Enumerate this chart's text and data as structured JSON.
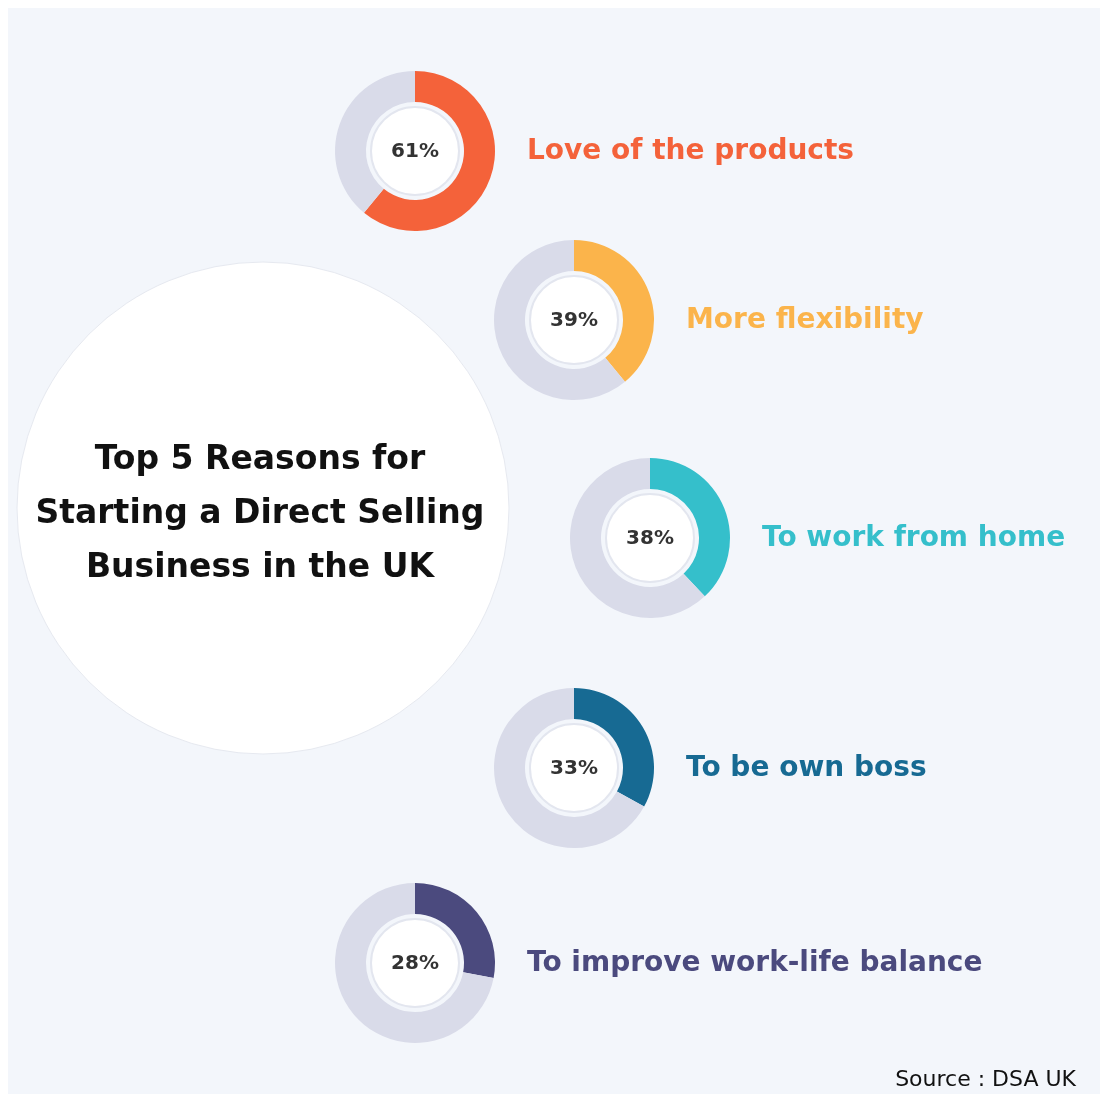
{
  "chart_data": [
    {
      "type": "other",
      "title": "Top 5 Reasons for Starting a Direct Selling Business in the UK",
      "annotations": [
        "Source : DSA UK"
      ]
    },
    {
      "type": "donut",
      "categories": [
        "Love of the products",
        null
      ],
      "values": [
        61,
        39
      ],
      "colors": [
        "#f4623a",
        "#d9dbe9"
      ],
      "value_labels": [
        "61%",
        null
      ]
    },
    {
      "type": "donut",
      "categories": [
        "More flexibility",
        null
      ],
      "values": [
        39,
        61
      ],
      "colors": [
        "#fbb44b",
        "#d9dbe9"
      ],
      "value_labels": [
        "39%",
        null
      ]
    },
    {
      "type": "donut",
      "categories": [
        "To work from home",
        null
      ],
      "values": [
        38,
        62
      ],
      "colors": [
        "#35bfcb",
        "#d9dbe9"
      ],
      "value_labels": [
        "38%",
        null
      ]
    },
    {
      "type": "donut",
      "categories": [
        "To be own boss",
        null
      ],
      "values": [
        33,
        67
      ],
      "colors": [
        "#176a93",
        "#d9dbe9"
      ],
      "value_labels": [
        "33%",
        null
      ]
    },
    {
      "type": "donut",
      "categories": [
        "To improve work-life balance",
        null
      ],
      "values": [
        28,
        72
      ],
      "colors": [
        "#4b4a7e",
        "#d9dbe9"
      ],
      "value_labels": [
        "28%",
        null
      ]
    }
  ]
}
